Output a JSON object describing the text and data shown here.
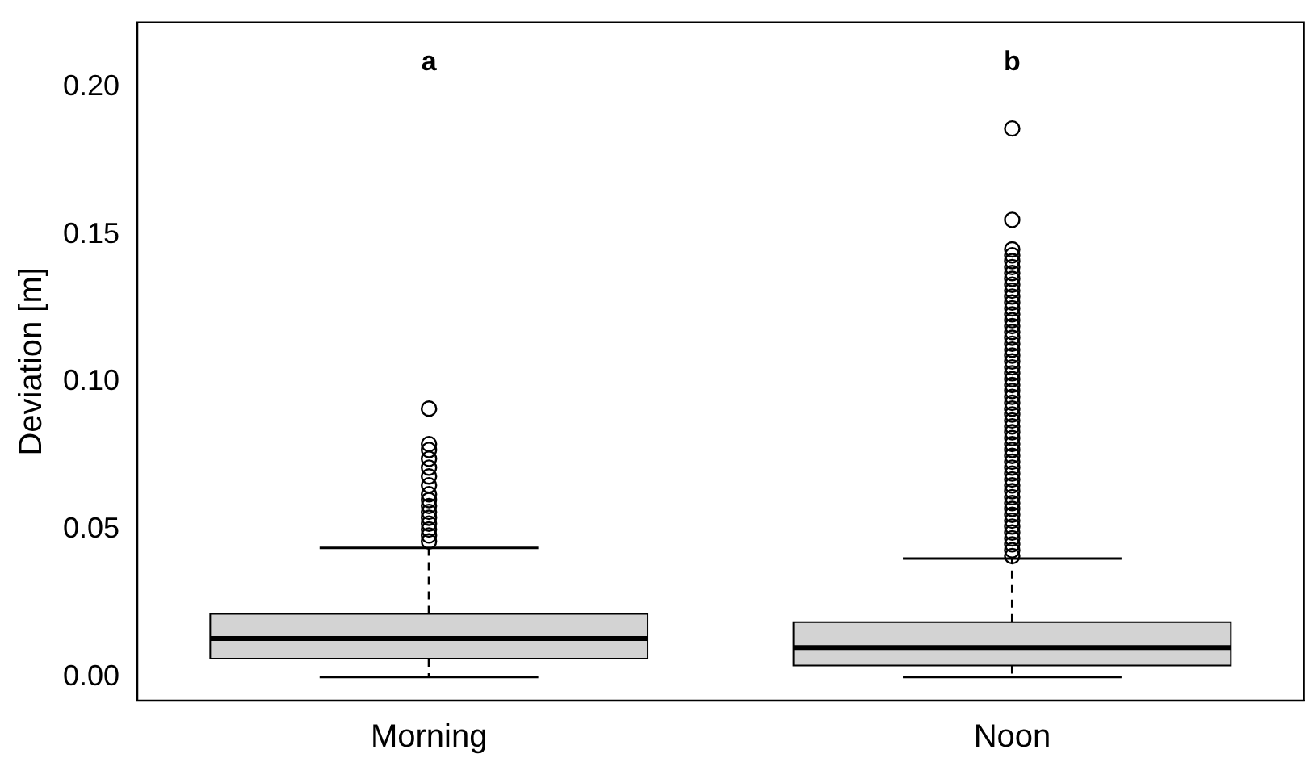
{
  "chart_data": {
    "type": "box",
    "ylabel": "Deviation [m]",
    "categories": [
      "Morning",
      "Noon"
    ],
    "boxes": [
      {
        "low": 0,
        "q1": 0.0062,
        "median": 0.0131,
        "q3": 0.0214,
        "high": 0.0438,
        "outliers": [
          0.091,
          0.079,
          0.077,
          0.074,
          0.071,
          0.068,
          0.065,
          0.062,
          0.06,
          0.058,
          0.056,
          0.054,
          0.052,
          0.05,
          0.048,
          0.046
        ]
      },
      {
        "low": 0,
        "q1": 0.0039,
        "median": 0.01,
        "q3": 0.0186,
        "high": 0.0402,
        "outliers": [
          0.186,
          0.155,
          0.145,
          0.143,
          0.141,
          0.139,
          0.137,
          0.135,
          0.133,
          0.131,
          0.129,
          0.127,
          0.125,
          0.123,
          0.121,
          0.119,
          0.117,
          0.115,
          0.113,
          0.111,
          0.109,
          0.107,
          0.105,
          0.103,
          0.101,
          0.099,
          0.097,
          0.095,
          0.093,
          0.091,
          0.089,
          0.087,
          0.085,
          0.083,
          0.081,
          0.079,
          0.077,
          0.075,
          0.073,
          0.071,
          0.069,
          0.067,
          0.065,
          0.063,
          0.061,
          0.059,
          0.057,
          0.055,
          0.053,
          0.051,
          0.049,
          0.047,
          0.045,
          0.043,
          0.041
        ]
      }
    ],
    "color": "#d3d3d3",
    "ylim": [
      -0.008,
      0.222
    ],
    "yticks": [
      {
        "value": 0,
        "label": "0.00"
      },
      {
        "value": 0.05,
        "label": "0.05"
      },
      {
        "value": 0.1,
        "label": "0.10"
      },
      {
        "value": 0.15,
        "label": "0.15"
      },
      {
        "value": 0.2,
        "label": "0.20"
      }
    ],
    "annotations": [
      "a",
      "b"
    ],
    "grid": false,
    "legend": false,
    "marker": "circle"
  }
}
